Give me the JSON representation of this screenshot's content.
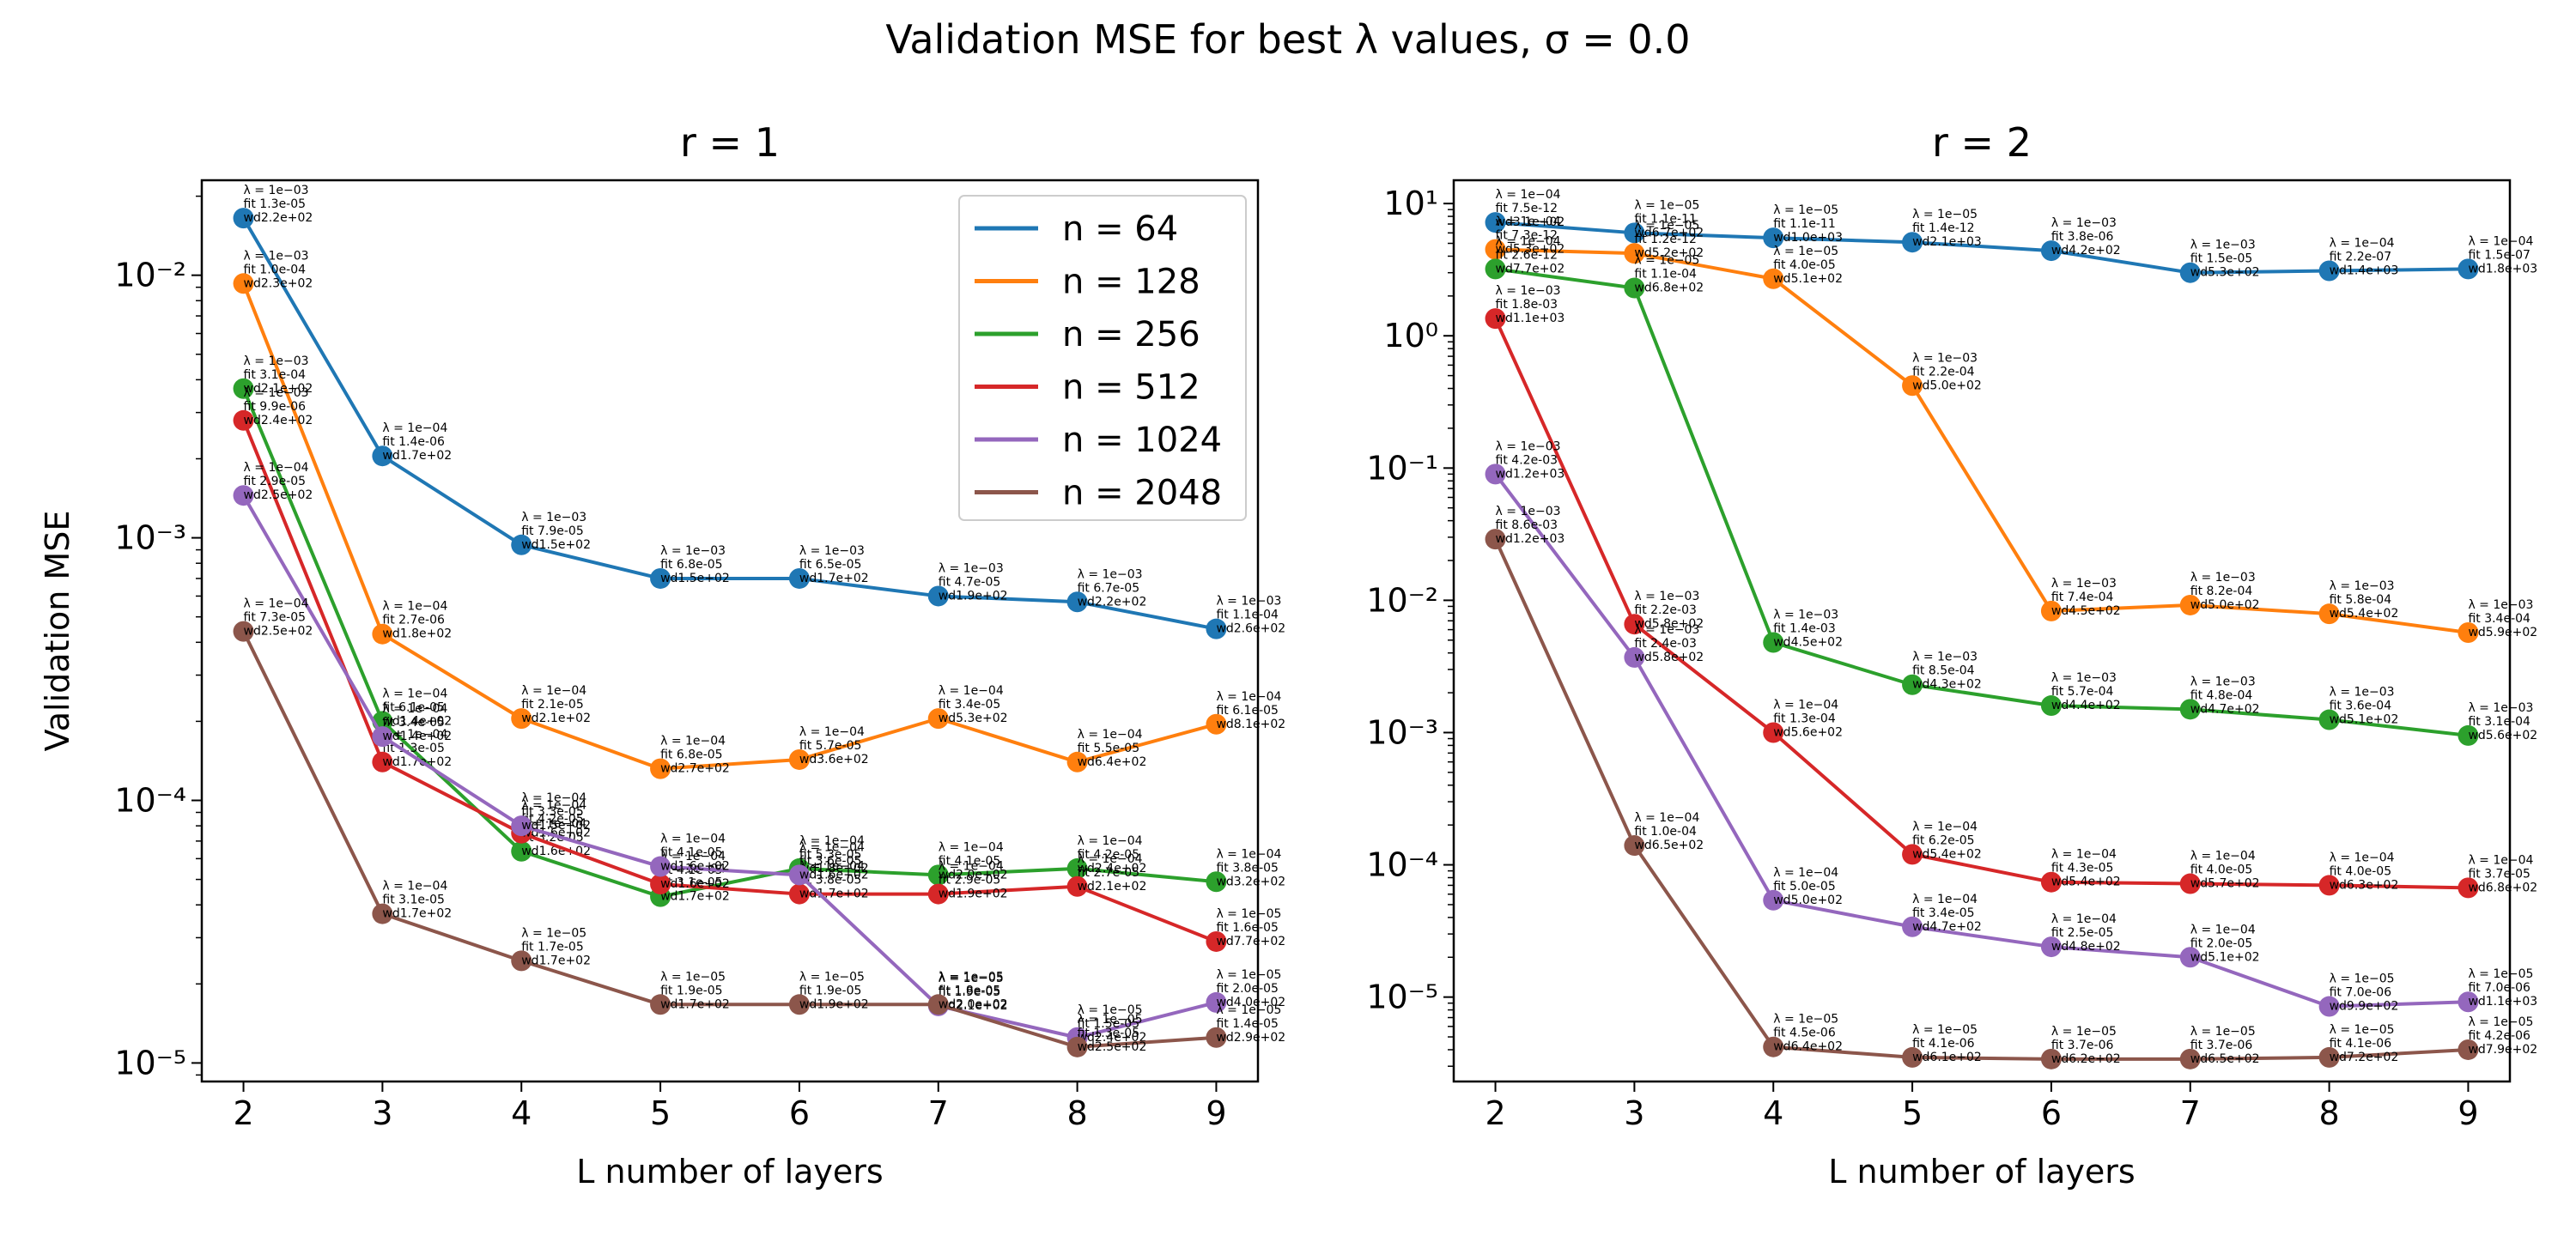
{
  "suptitle": "Validation MSE for best λ values, σ = 0.0",
  "series_colors": {
    "n=64": "#1f77b4",
    "n=128": "#ff7f0e",
    "n=256": "#2ca02c",
    "n=512": "#d62728",
    "n=1024": "#9467bd",
    "n=2048": "#8c564b"
  },
  "chart_data": [
    {
      "type": "line",
      "title": "r = 1",
      "xlabel": "L number of layers",
      "ylabel": "Validation MSE",
      "yscale": "log",
      "x": [
        2,
        3,
        4,
        5,
        6,
        7,
        8,
        9
      ],
      "xlim": [
        1.7,
        9.3
      ],
      "ylim": [
        8.5e-06,
        0.023
      ],
      "xticks": [
        "2",
        "3",
        "4",
        "5",
        "6",
        "7",
        "8",
        "9"
      ],
      "yticks": [
        {
          "value": 1e-05,
          "label": "10⁻⁵"
        },
        {
          "value": 0.0001,
          "label": "10⁻⁴"
        },
        {
          "value": 0.001,
          "label": "10⁻³"
        },
        {
          "value": 0.01,
          "label": "10⁻²"
        }
      ],
      "legend": {
        "position": "upper right",
        "entries": [
          "n = 64",
          "n = 128",
          "n = 256",
          "n = 512",
          "n = 1024",
          "n = 2048"
        ]
      },
      "series": [
        {
          "name": "n = 64",
          "values": [
            0.0165,
            0.00205,
            0.00094,
            0.0007,
            0.0007,
            0.0006,
            0.00057,
            0.00045
          ],
          "annotations": [
            [
              "λ = 1e−03",
              "fit 1.3e-05",
              "wd2.2e+02"
            ],
            [
              "λ = 1e−04",
              "fit 1.4e-06",
              "wd1.7e+02"
            ],
            [
              "λ = 1e−03",
              "fit 7.9e-05",
              "wd1.5e+02"
            ],
            [
              "λ = 1e−03",
              "fit 6.8e-05",
              "wd1.5e+02"
            ],
            [
              "λ = 1e−03",
              "fit 6.5e-05",
              "wd1.7e+02"
            ],
            [
              "λ = 1e−03",
              "fit 4.7e-05",
              "wd1.9e+02"
            ],
            [
              "λ = 1e−03",
              "fit 6.7e-05",
              "wd2.2e+02"
            ],
            [
              "λ = 1e−03",
              "fit 1.1e-04",
              "wd2.6e+02"
            ]
          ]
        },
        {
          "name": "n = 128",
          "values": [
            0.0093,
            0.00043,
            0.000205,
            0.000132,
            0.000143,
            0.000205,
            0.00014,
            0.000195
          ],
          "annotations": [
            [
              "λ = 1e−03",
              "fit 1.0e-04",
              "wd2.3e+02"
            ],
            [
              "λ = 1e−04",
              "fit 2.7e-06",
              "wd1.8e+02"
            ],
            [
              "λ = 1e−04",
              "fit 2.1e-05",
              "wd2.1e+02"
            ],
            [
              "λ = 1e−04",
              "fit 6.8e-05",
              "wd2.7e+02"
            ],
            [
              "λ = 1e−04",
              "fit 5.7e-05",
              "wd3.6e+02"
            ],
            [
              "λ = 1e−04",
              "fit 3.4e-05",
              "wd5.3e+02"
            ],
            [
              "λ = 1e−04",
              "fit 5.5e-05",
              "wd6.4e+02"
            ],
            [
              "λ = 1e−04",
              "fit 6.1e-05",
              "wd8.1e+02"
            ]
          ]
        },
        {
          "name": "n = 256",
          "values": [
            0.0037,
            0.0002,
            6.4e-05,
            4.3e-05,
            5.5e-05,
            5.2e-05,
            5.5e-05,
            4.9e-05
          ],
          "annotations": [
            [
              "λ = 1e−03",
              "fit 3.1e-04",
              "wd2.1e+02"
            ],
            [
              "λ = 1e−04",
              "fit 6.1e-05",
              "wd1.4e+02"
            ],
            [
              "λ = 1e−04",
              "fit 3.2e-05",
              "wd1.6e+02"
            ],
            [
              "λ = 1e−04",
              "fit 3.1e-05",
              "wd1.7e+02"
            ],
            [
              "λ = 1e−04",
              "fit 5.3e-05",
              "wd1.8e+02"
            ],
            [
              "λ = 1e−04",
              "fit 4.1e-05",
              "wd2.0e+02"
            ],
            [
              "λ = 1e−04",
              "fit 4.2e-05",
              "wd2.4e+02"
            ],
            [
              "λ = 1e−04",
              "fit 3.8e-05",
              "wd3.2e+02"
            ]
          ]
        },
        {
          "name": "n = 512",
          "values": [
            0.0028,
            0.00014,
            7.5e-05,
            4.8e-05,
            4.4e-05,
            4.4e-05,
            4.7e-05,
            2.9e-05
          ],
          "annotations": [
            [
              "λ = 1e−03",
              "fit 9.9e-06",
              "wd2.4e+02"
            ],
            [
              "λ = 1e−04",
              "fit 1.3e-05",
              "wd1.7e+02"
            ],
            [
              "λ = 1e−04",
              "fit 4.2e-05",
              "wd1.6e+02"
            ],
            [
              "λ = 1e−04",
              "fit 4.1e-05",
              "wd1.6e+02"
            ],
            [
              "λ = 1e−04",
              "fit 3.8e-05",
              "wd1.7e+02"
            ],
            [
              "λ = 1e−04",
              "fit 2.9e-05",
              "wd1.9e+02"
            ],
            [
              "λ = 1e−04",
              "fit 2.7e-05",
              "wd2.1e+02"
            ],
            [
              "λ = 1e−05",
              "fit 1.6e-05",
              "wd7.7e+02"
            ]
          ]
        },
        {
          "name": "n = 1024",
          "values": [
            0.00145,
            0.000175,
            8e-05,
            5.6e-05,
            5.2e-05,
            1.65e-05,
            1.25e-05,
            1.7e-05
          ],
          "annotations": [
            [
              "λ = 1e−04",
              "fit 2.9e-05",
              "wd2.5e+02"
            ],
            [
              "λ = 1e−04",
              "fit 3.4e-05",
              "wd1.4e+02"
            ],
            [
              "λ = 1e−04",
              "fit 3.3e-05",
              "wd1.5e+02"
            ],
            [
              "λ = 1e−04",
              "fit 4.1e-05",
              "wd1.6e+02"
            ],
            [
              "λ = 1e−04",
              "fit 3.6e-05",
              "wd1.6e+02"
            ],
            [
              "λ = 1e−05",
              "fit 1.9e-05",
              "wd2.1e+02"
            ],
            [
              "λ = 1e−05",
              "fit 1.5e-05",
              "wd2.4e+02"
            ],
            [
              "λ = 1e−05",
              "fit 2.0e-05",
              "wd4.0e+02"
            ]
          ]
        },
        {
          "name": "n = 2048",
          "values": [
            0.00044,
            3.7e-05,
            2.45e-05,
            1.67e-05,
            1.67e-05,
            1.67e-05,
            1.15e-05,
            1.25e-05
          ],
          "annotations": [
            [
              "λ = 1e−04",
              "fit 7.3e-05",
              "wd2.5e+02"
            ],
            [
              "λ = 1e−04",
              "fit 3.1e-05",
              "wd1.7e+02"
            ],
            [
              "λ = 1e−05",
              "fit 1.7e-05",
              "wd1.7e+02"
            ],
            [
              "λ = 1e−05",
              "fit 1.9e-05",
              "wd1.7e+02"
            ],
            [
              "λ = 1e−05",
              "fit 1.9e-05",
              "wd1.9e+02"
            ],
            [
              "λ = 1e−05",
              "fit 1.8e-05",
              "wd2.0e+02"
            ],
            [
              "λ = 1e−05",
              "fit 1.3e-05",
              "wd2.5e+02"
            ],
            [
              "λ = 1e−05",
              "fit 1.4e-05",
              "wd2.9e+02"
            ]
          ]
        }
      ]
    },
    {
      "type": "line",
      "title": "r = 2",
      "xlabel": "L number of layers",
      "ylabel": "",
      "yscale": "log",
      "x": [
        2,
        3,
        4,
        5,
        6,
        7,
        8,
        9
      ],
      "xlim": [
        1.7,
        9.3
      ],
      "ylim": [
        2.3e-06,
        15
      ],
      "xticks": [
        "2",
        "3",
        "4",
        "5",
        "6",
        "7",
        "8",
        "9"
      ],
      "yticks": [
        {
          "value": 1e-05,
          "label": "10⁻⁵"
        },
        {
          "value": 0.0001,
          "label": "10⁻⁴"
        },
        {
          "value": 0.001,
          "label": "10⁻³"
        },
        {
          "value": 0.01,
          "label": "10⁻²"
        },
        {
          "value": 0.1,
          "label": "10⁻¹"
        },
        {
          "value": 1,
          "label": "10⁰"
        },
        {
          "value": 10,
          "label": "10¹"
        }
      ],
      "series": [
        {
          "name": "n = 64",
          "values": [
            7.2,
            6.0,
            5.5,
            5.1,
            4.4,
            3.0,
            3.1,
            3.2
          ],
          "annotations": [
            [
              "λ = 1e−04",
              "fit 7.5e-12",
              "wd3.1e+02"
            ],
            [
              "λ = 1e−05",
              "fit 1.1e-11",
              "wd6.7e+02"
            ],
            [
              "λ = 1e−05",
              "fit 1.1e-11",
              "wd1.0e+03"
            ],
            [
              "λ = 1e−05",
              "fit 1.4e-12",
              "wd2.1e+03"
            ],
            [
              "λ = 1e−03",
              "fit 3.8e-06",
              "wd4.2e+02"
            ],
            [
              "λ = 1e−03",
              "fit 1.5e-05",
              "wd5.3e+02"
            ],
            [
              "λ = 1e−04",
              "fit 2.2e-07",
              "wd1.4e+03"
            ],
            [
              "λ = 1e−04",
              "fit 1.5e-07",
              "wd1.8e+03"
            ]
          ]
        },
        {
          "name": "n = 128",
          "values": [
            4.5,
            4.2,
            2.7,
            0.42,
            0.0083,
            0.0092,
            0.0079,
            0.0057
          ],
          "annotations": [
            [
              "λ = 1e−04",
              "fit 7.3e-12",
              "wd5.3e+02"
            ],
            [
              "λ = 1e−05",
              "fit 1.2e-12",
              "wd5.2e+02"
            ],
            [
              "λ = 1e−05",
              "fit 4.0e-05",
              "wd5.1e+02"
            ],
            [
              "λ = 1e−03",
              "fit 2.2e-04",
              "wd5.0e+02"
            ],
            [
              "λ = 1e−03",
              "fit 7.4e-04",
              "wd4.5e+02"
            ],
            [
              "λ = 1e−03",
              "fit 8.2e-04",
              "wd5.0e+02"
            ],
            [
              "λ = 1e−03",
              "fit 5.8e-04",
              "wd5.4e+02"
            ],
            [
              "λ = 1e−03",
              "fit 3.4e-04",
              "wd5.9e+02"
            ]
          ]
        },
        {
          "name": "n = 256",
          "values": [
            3.2,
            2.3,
            0.0048,
            0.0023,
            0.0016,
            0.0015,
            0.00125,
            0.00095
          ],
          "annotations": [
            [
              "λ = 1e−04",
              "fit 2.6e-12",
              "wd7.7e+02"
            ],
            [
              "λ = 1e−05",
              "fit 1.1e-04",
              "wd6.8e+02"
            ],
            [
              "λ = 1e−03",
              "fit 1.4e-03",
              "wd4.5e+02"
            ],
            [
              "λ = 1e−03",
              "fit 8.5e-04",
              "wd4.3e+02"
            ],
            [
              "λ = 1e−03",
              "fit 5.7e-04",
              "wd4.4e+02"
            ],
            [
              "λ = 1e−03",
              "fit 4.8e-04",
              "wd4.7e+02"
            ],
            [
              "λ = 1e−03",
              "fit 3.6e-04",
              "wd5.1e+02"
            ],
            [
              "λ = 1e−03",
              "fit 3.1e-04",
              "wd5.6e+02"
            ]
          ]
        },
        {
          "name": "n = 512",
          "values": [
            1.35,
            0.0066,
            0.001,
            0.00012,
            7.4e-05,
            7.2e-05,
            7e-05,
            6.7e-05
          ],
          "annotations": [
            [
              "λ = 1e−03",
              "fit 1.8e-03",
              "wd1.1e+03"
            ],
            [
              "λ = 1e−03",
              "fit 2.2e-03",
              "wd5.8e+02"
            ],
            [
              "λ = 1e−04",
              "fit 1.3e-04",
              "wd5.6e+02"
            ],
            [
              "λ = 1e−04",
              "fit 6.2e-05",
              "wd5.4e+02"
            ],
            [
              "λ = 1e−04",
              "fit 4.3e-05",
              "wd5.4e+02"
            ],
            [
              "λ = 1e−04",
              "fit 4.0e-05",
              "wd5.7e+02"
            ],
            [
              "λ = 1e−04",
              "fit 4.0e-05",
              "wd6.3e+02"
            ],
            [
              "λ = 1e−04",
              "fit 3.7e-05",
              "wd6.8e+02"
            ]
          ]
        },
        {
          "name": "n = 1024",
          "values": [
            0.09,
            0.0037,
            5.4e-05,
            3.4e-05,
            2.4e-05,
            2e-05,
            8.5e-06,
            9.2e-06
          ],
          "annotations": [
            [
              "λ = 1e−03",
              "fit 4.2e-03",
              "wd1.2e+03"
            ],
            [
              "λ = 1e−03",
              "fit 2.4e-03",
              "wd5.8e+02"
            ],
            [
              "λ = 1e−04",
              "fit 5.0e-05",
              "wd5.0e+02"
            ],
            [
              "λ = 1e−04",
              "fit 3.4e-05",
              "wd4.7e+02"
            ],
            [
              "λ = 1e−04",
              "fit 2.5e-05",
              "wd4.8e+02"
            ],
            [
              "λ = 1e−04",
              "fit 2.0e-05",
              "wd5.1e+02"
            ],
            [
              "λ = 1e−05",
              "fit 7.0e-06",
              "wd9.9e+02"
            ],
            [
              "λ = 1e−05",
              "fit 7.0e-06",
              "wd1.1e+03"
            ]
          ]
        },
        {
          "name": "n = 2048",
          "values": [
            0.029,
            0.00014,
            4.2e-06,
            3.5e-06,
            3.4e-06,
            3.4e-06,
            3.5e-06,
            4e-06
          ],
          "annotations": [
            [
              "λ = 1e−03",
              "fit 8.6e-03",
              "wd1.2e+03"
            ],
            [
              "λ = 1e−04",
              "fit 1.0e-04",
              "wd6.5e+02"
            ],
            [
              "λ = 1e−05",
              "fit 4.5e-06",
              "wd6.4e+02"
            ],
            [
              "λ = 1e−05",
              "fit 4.1e-06",
              "wd6.1e+02"
            ],
            [
              "λ = 1e−05",
              "fit 3.7e-06",
              "wd6.2e+02"
            ],
            [
              "λ = 1e−05",
              "fit 3.7e-06",
              "wd6.5e+02"
            ],
            [
              "λ = 1e−05",
              "fit 4.1e-06",
              "wd7.2e+02"
            ],
            [
              "λ = 1e−05",
              "fit 4.2e-06",
              "wd7.9e+02"
            ]
          ]
        }
      ]
    }
  ]
}
